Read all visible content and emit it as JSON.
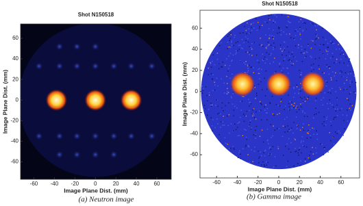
{
  "chart_data": [
    {
      "type": "image",
      "title": "Shot N150518",
      "xlabel": "Image Plane Dist. (mm)",
      "ylabel": "Image Plane Dist. (mm)",
      "xlim": [
        -73,
        74
      ],
      "ylim": [
        -77,
        74
      ],
      "xticks": [
        -60,
        -40,
        -20,
        0,
        20,
        40,
        60
      ],
      "yticks": [
        -60,
        -40,
        -20,
        0,
        20,
        40,
        60
      ],
      "caption": "(a) Neutron image"
    },
    {
      "type": "image",
      "title": "Shot N150518",
      "xlabel": "Image Plane Dist. (mm)",
      "ylabel": "Image Plane Dist. (mm)",
      "xlim": [
        -76,
        78
      ],
      "ylim": [
        -82,
        77
      ],
      "xticks": [
        -60,
        -40,
        -20,
        0,
        20,
        40,
        60
      ],
      "yticks": [
        -60,
        -40,
        -20,
        0,
        20,
        40,
        60
      ],
      "caption": "(b) Gamma image"
    }
  ]
}
